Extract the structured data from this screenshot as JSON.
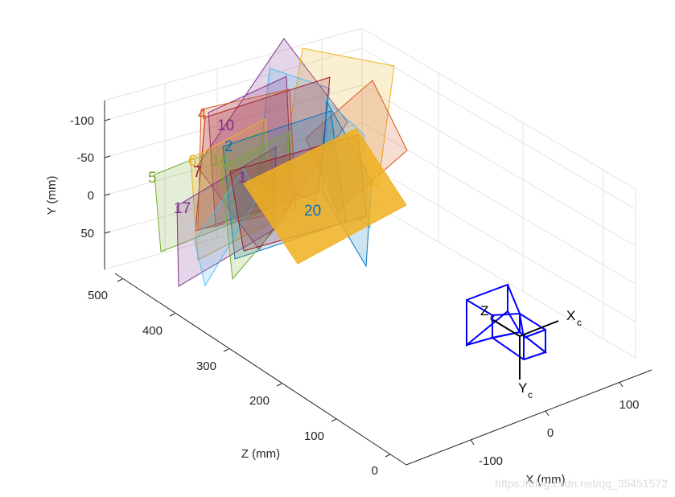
{
  "chart_data": {
    "type": "3d-extrinsics",
    "axes": {
      "xlabel": "X (mm)",
      "ylabel": "Y (mm)",
      "zlabel": "Z (mm)",
      "xticks": [
        "-100",
        "0",
        "100"
      ],
      "yticks": [
        "-100",
        "-50",
        "0",
        "50"
      ],
      "zticks": [
        "0",
        "100",
        "200",
        "300",
        "400",
        "500"
      ],
      "xlim": [
        -150,
        150
      ],
      "ylim": [
        -130,
        90
      ],
      "zlim": [
        0,
        530
      ],
      "grid": true
    },
    "camera": {
      "x_axis_label": "X",
      "x_axis_sub": "c",
      "y_axis_label": "Y",
      "y_axis_sub": "c",
      "z_axis_label": "Z",
      "z_axis_sub": "c",
      "color": "#0000ff"
    },
    "boards": [
      {
        "label": "1",
        "color": "#0072bd"
      },
      {
        "label": "2",
        "color": "#0072bd"
      },
      {
        "label": "4",
        "color": "#d95319"
      },
      {
        "label": "5",
        "color": "#77ac30"
      },
      {
        "label": "6",
        "color": "#edb120"
      },
      {
        "label": "7",
        "color": "#a2142f"
      },
      {
        "label": "10",
        "color": "#7e2f8e"
      },
      {
        "label": "16",
        "color": "#77ac30"
      },
      {
        "label": "17",
        "color": "#7e2f8e"
      },
      {
        "label": "20",
        "color": "#0072bd"
      }
    ],
    "highlighted_board": {
      "label": "20",
      "fill": "#f0b020"
    }
  },
  "watermark": "https://blog.csdn.net/qq_35451572"
}
